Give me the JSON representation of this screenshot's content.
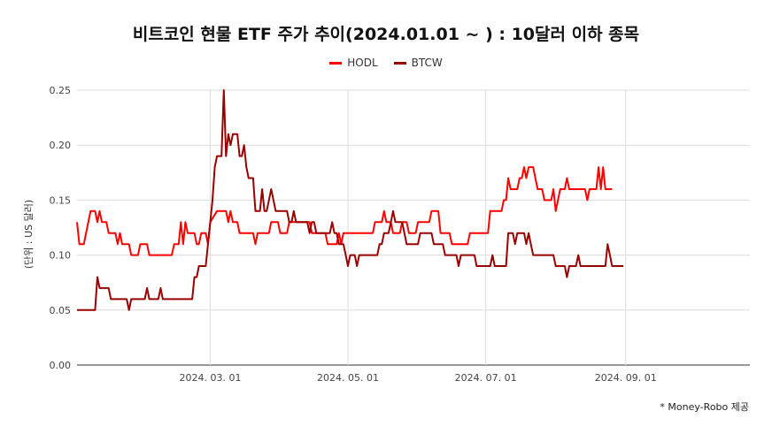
{
  "chart_data": {
    "type": "line",
    "title": "비트코인 현물 ETF 주가 추이(2024.01.01 ~ ) : 10달러 이하 종목",
    "ylabel": "(단위 : US 달러)",
    "xlabel": "",
    "ylim": [
      0,
      0.25
    ],
    "yticks": [
      "0.00",
      "0.05",
      "0.10",
      "0.15",
      "0.20",
      "0.25"
    ],
    "xticks": [
      {
        "label": "2024. 03. 01",
        "date": "2024-03-01"
      },
      {
        "label": "2024. 05. 01",
        "date": "2024-05-01"
      },
      {
        "label": "2024. 07. 01",
        "date": "2024-07-01"
      },
      {
        "label": "2024. 09. 01",
        "date": "2024-09-01"
      }
    ],
    "xrange": [
      "2024-01-02",
      "2024-10-26"
    ],
    "grid": true,
    "legend_position": "top",
    "series": [
      {
        "name": "HODL",
        "color": "#ff0000",
        "points": [
          [
            "2024-01-02",
            0.13
          ],
          [
            "2024-01-03",
            0.11
          ],
          [
            "2024-01-05",
            0.11
          ],
          [
            "2024-01-08",
            0.14
          ],
          [
            "2024-01-10",
            0.14
          ],
          [
            "2024-01-11",
            0.13
          ],
          [
            "2024-01-12",
            0.14
          ],
          [
            "2024-01-13",
            0.13
          ],
          [
            "2024-01-15",
            0.13
          ],
          [
            "2024-01-16",
            0.12
          ],
          [
            "2024-01-19",
            0.12
          ],
          [
            "2024-01-20",
            0.11
          ],
          [
            "2024-01-21",
            0.12
          ],
          [
            "2024-01-22",
            0.11
          ],
          [
            "2024-01-25",
            0.11
          ],
          [
            "2024-01-26",
            0.1
          ],
          [
            "2024-01-29",
            0.1
          ],
          [
            "2024-01-30",
            0.11
          ],
          [
            "2024-02-02",
            0.11
          ],
          [
            "2024-02-03",
            0.1
          ],
          [
            "2024-02-13",
            0.1
          ],
          [
            "2024-02-14",
            0.11
          ],
          [
            "2024-02-16",
            0.11
          ],
          [
            "2024-02-17",
            0.13
          ],
          [
            "2024-02-18",
            0.11
          ],
          [
            "2024-02-19",
            0.13
          ],
          [
            "2024-02-20",
            0.12
          ],
          [
            "2024-02-23",
            0.12
          ],
          [
            "2024-02-24",
            0.11
          ],
          [
            "2024-02-25",
            0.11
          ],
          [
            "2024-02-26",
            0.12
          ],
          [
            "2024-02-28",
            0.12
          ],
          [
            "2024-02-29",
            0.11
          ],
          [
            "2024-03-01",
            0.13
          ],
          [
            "2024-03-04",
            0.14
          ],
          [
            "2024-03-08",
            0.14
          ],
          [
            "2024-03-09",
            0.13
          ],
          [
            "2024-03-10",
            0.14
          ],
          [
            "2024-03-11",
            0.13
          ],
          [
            "2024-03-13",
            0.13
          ],
          [
            "2024-03-14",
            0.12
          ],
          [
            "2024-03-20",
            0.12
          ],
          [
            "2024-03-21",
            0.11
          ],
          [
            "2024-03-22",
            0.12
          ],
          [
            "2024-03-27",
            0.12
          ],
          [
            "2024-03-28",
            0.13
          ],
          [
            "2024-03-31",
            0.13
          ],
          [
            "2024-04-01",
            0.12
          ],
          [
            "2024-04-04",
            0.12
          ],
          [
            "2024-04-05",
            0.13
          ],
          [
            "2024-04-14",
            0.13
          ],
          [
            "2024-04-15",
            0.12
          ],
          [
            "2024-04-21",
            0.12
          ],
          [
            "2024-04-22",
            0.11
          ],
          [
            "2024-04-26",
            0.11
          ],
          [
            "2024-04-27",
            0.12
          ],
          [
            "2024-04-28",
            0.11
          ],
          [
            "2024-04-29",
            0.12
          ],
          [
            "2024-05-10",
            0.12
          ],
          [
            "2024-05-12",
            0.12
          ],
          [
            "2024-05-13",
            0.13
          ],
          [
            "2024-05-16",
            0.13
          ],
          [
            "2024-05-17",
            0.14
          ],
          [
            "2024-05-18",
            0.13
          ],
          [
            "2024-05-20",
            0.13
          ],
          [
            "2024-05-21",
            0.12
          ],
          [
            "2024-05-24",
            0.12
          ],
          [
            "2024-05-25",
            0.13
          ],
          [
            "2024-05-27",
            0.13
          ],
          [
            "2024-05-28",
            0.12
          ],
          [
            "2024-05-31",
            0.12
          ],
          [
            "2024-06-01",
            0.13
          ],
          [
            "2024-06-06",
            0.13
          ],
          [
            "2024-06-07",
            0.14
          ],
          [
            "2024-06-10",
            0.14
          ],
          [
            "2024-06-11",
            0.12
          ],
          [
            "2024-06-15",
            0.12
          ],
          [
            "2024-06-16",
            0.11
          ],
          [
            "2024-06-23",
            0.11
          ],
          [
            "2024-06-24",
            0.12
          ],
          [
            "2024-07-02",
            0.12
          ],
          [
            "2024-07-03",
            0.14
          ],
          [
            "2024-07-08",
            0.14
          ],
          [
            "2024-07-09",
            0.15
          ],
          [
            "2024-07-10",
            0.15
          ],
          [
            "2024-07-11",
            0.17
          ],
          [
            "2024-07-12",
            0.16
          ],
          [
            "2024-07-15",
            0.16
          ],
          [
            "2024-07-16",
            0.17
          ],
          [
            "2024-07-17",
            0.17
          ],
          [
            "2024-07-18",
            0.18
          ],
          [
            "2024-07-19",
            0.17
          ],
          [
            "2024-07-20",
            0.18
          ],
          [
            "2024-07-22",
            0.18
          ],
          [
            "2024-07-23",
            0.17
          ],
          [
            "2024-07-24",
            0.16
          ],
          [
            "2024-07-26",
            0.16
          ],
          [
            "2024-07-27",
            0.15
          ],
          [
            "2024-07-30",
            0.15
          ],
          [
            "2024-07-31",
            0.16
          ],
          [
            "2024-08-01",
            0.14
          ],
          [
            "2024-08-02",
            0.15
          ],
          [
            "2024-08-03",
            0.16
          ],
          [
            "2024-08-05",
            0.16
          ],
          [
            "2024-08-06",
            0.17
          ],
          [
            "2024-08-07",
            0.16
          ],
          [
            "2024-08-14",
            0.16
          ],
          [
            "2024-08-15",
            0.15
          ],
          [
            "2024-08-16",
            0.16
          ],
          [
            "2024-08-19",
            0.16
          ],
          [
            "2024-08-20",
            0.18
          ],
          [
            "2024-08-21",
            0.16
          ],
          [
            "2024-08-22",
            0.18
          ],
          [
            "2024-08-23",
            0.16
          ],
          [
            "2024-08-26",
            0.16
          ]
        ]
      },
      {
        "name": "BTCW",
        "color": "#990000",
        "points": [
          [
            "2024-01-02",
            0.05
          ],
          [
            "2024-01-10",
            0.05
          ],
          [
            "2024-01-11",
            0.08
          ],
          [
            "2024-01-12",
            0.07
          ],
          [
            "2024-01-16",
            0.07
          ],
          [
            "2024-01-17",
            0.06
          ],
          [
            "2024-01-24",
            0.06
          ],
          [
            "2024-01-25",
            0.05
          ],
          [
            "2024-01-26",
            0.06
          ],
          [
            "2024-02-01",
            0.06
          ],
          [
            "2024-02-02",
            0.07
          ],
          [
            "2024-02-03",
            0.06
          ],
          [
            "2024-02-07",
            0.06
          ],
          [
            "2024-02-08",
            0.07
          ],
          [
            "2024-02-09",
            0.06
          ],
          [
            "2024-02-22",
            0.06
          ],
          [
            "2024-02-23",
            0.08
          ],
          [
            "2024-02-24",
            0.08
          ],
          [
            "2024-02-25",
            0.09
          ],
          [
            "2024-02-28",
            0.09
          ],
          [
            "2024-02-29",
            0.11
          ],
          [
            "2024-03-01",
            0.13
          ],
          [
            "2024-03-02",
            0.15
          ],
          [
            "2024-03-03",
            0.18
          ],
          [
            "2024-03-04",
            0.19
          ],
          [
            "2024-03-06",
            0.19
          ],
          [
            "2024-03-07",
            0.25
          ],
          [
            "2024-03-08",
            0.19
          ],
          [
            "2024-03-09",
            0.21
          ],
          [
            "2024-03-10",
            0.2
          ],
          [
            "2024-03-11",
            0.21
          ],
          [
            "2024-03-13",
            0.21
          ],
          [
            "2024-03-14",
            0.19
          ],
          [
            "2024-03-15",
            0.19
          ],
          [
            "2024-03-16",
            0.2
          ],
          [
            "2024-03-17",
            0.18
          ],
          [
            "2024-03-18",
            0.17
          ],
          [
            "2024-03-20",
            0.17
          ],
          [
            "2024-03-21",
            0.14
          ],
          [
            "2024-03-23",
            0.14
          ],
          [
            "2024-03-24",
            0.16
          ],
          [
            "2024-03-25",
            0.14
          ],
          [
            "2024-03-26",
            0.14
          ],
          [
            "2024-03-27",
            0.15
          ],
          [
            "2024-03-28",
            0.16
          ],
          [
            "2024-03-29",
            0.15
          ],
          [
            "2024-03-30",
            0.14
          ],
          [
            "2024-04-04",
            0.14
          ],
          [
            "2024-04-05",
            0.13
          ],
          [
            "2024-04-06",
            0.13
          ],
          [
            "2024-04-07",
            0.14
          ],
          [
            "2024-04-08",
            0.13
          ],
          [
            "2024-04-13",
            0.13
          ],
          [
            "2024-04-14",
            0.12
          ],
          [
            "2024-04-15",
            0.13
          ],
          [
            "2024-04-16",
            0.13
          ],
          [
            "2024-04-17",
            0.12
          ],
          [
            "2024-04-23",
            0.12
          ],
          [
            "2024-04-24",
            0.13
          ],
          [
            "2024-04-25",
            0.12
          ],
          [
            "2024-04-26",
            0.12
          ],
          [
            "2024-04-27",
            0.11
          ],
          [
            "2024-04-29",
            0.11
          ],
          [
            "2024-04-30",
            0.1
          ],
          [
            "2024-05-01",
            0.09
          ],
          [
            "2024-05-02",
            0.1
          ],
          [
            "2024-05-04",
            0.1
          ],
          [
            "2024-05-05",
            0.09
          ],
          [
            "2024-05-06",
            0.1
          ],
          [
            "2024-05-14",
            0.1
          ],
          [
            "2024-05-15",
            0.11
          ],
          [
            "2024-05-16",
            0.11
          ],
          [
            "2024-05-17",
            0.12
          ],
          [
            "2024-05-19",
            0.12
          ],
          [
            "2024-05-20",
            0.13
          ],
          [
            "2024-05-21",
            0.14
          ],
          [
            "2024-05-22",
            0.13
          ],
          [
            "2024-05-25",
            0.13
          ],
          [
            "2024-05-26",
            0.12
          ],
          [
            "2024-05-27",
            0.11
          ],
          [
            "2024-06-01",
            0.11
          ],
          [
            "2024-06-02",
            0.12
          ],
          [
            "2024-06-07",
            0.12
          ],
          [
            "2024-06-08",
            0.11
          ],
          [
            "2024-06-12",
            0.11
          ],
          [
            "2024-06-13",
            0.1
          ],
          [
            "2024-06-18",
            0.1
          ],
          [
            "2024-06-19",
            0.09
          ],
          [
            "2024-06-20",
            0.1
          ],
          [
            "2024-06-26",
            0.1
          ],
          [
            "2024-06-27",
            0.09
          ],
          [
            "2024-07-03",
            0.09
          ],
          [
            "2024-07-04",
            0.1
          ],
          [
            "2024-07-05",
            0.09
          ],
          [
            "2024-07-10",
            0.09
          ],
          [
            "2024-07-11",
            0.12
          ],
          [
            "2024-07-13",
            0.12
          ],
          [
            "2024-07-14",
            0.11
          ],
          [
            "2024-07-15",
            0.12
          ],
          [
            "2024-07-18",
            0.12
          ],
          [
            "2024-07-19",
            0.11
          ],
          [
            "2024-07-20",
            0.12
          ],
          [
            "2024-07-21",
            0.11
          ],
          [
            "2024-07-22",
            0.1
          ],
          [
            "2024-07-31",
            0.1
          ],
          [
            "2024-08-01",
            0.09
          ],
          [
            "2024-08-05",
            0.09
          ],
          [
            "2024-08-06",
            0.08
          ],
          [
            "2024-08-07",
            0.09
          ],
          [
            "2024-08-10",
            0.09
          ],
          [
            "2024-08-11",
            0.1
          ],
          [
            "2024-08-12",
            0.09
          ],
          [
            "2024-08-23",
            0.09
          ],
          [
            "2024-08-24",
            0.11
          ],
          [
            "2024-08-25",
            0.1
          ],
          [
            "2024-08-26",
            0.09
          ],
          [
            "2024-08-31",
            0.09
          ]
        ]
      }
    ]
  },
  "footnote": "* Money-Robo 제공"
}
